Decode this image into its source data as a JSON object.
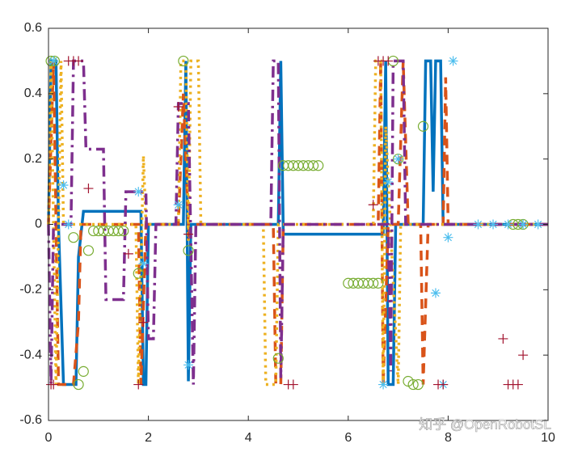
{
  "chart_data": {
    "type": "line",
    "xlim": [
      0,
      10
    ],
    "xticks": [
      0,
      2,
      4,
      6,
      8,
      10
    ],
    "ylim": [
      -0.6,
      0.6
    ],
    "yticks": [
      -0.6,
      -0.4,
      -0.2,
      0,
      0.2,
      0.4,
      0.6
    ],
    "watermark": "知乎 @OpenRobotSL",
    "series": [
      {
        "color": "#0072bd",
        "style": "solid",
        "x": [
          0,
          0.05,
          0.15,
          0.2,
          0.3,
          0.55,
          0.6,
          0.7,
          1.85,
          1.9,
          1.95,
          2.0,
          2.7,
          2.75,
          2.8,
          2.85,
          4.6,
          4.65,
          4.7,
          6.7,
          6.75,
          6.8,
          6.9,
          6.95,
          7.5,
          7.55,
          7.65,
          7.7,
          7.75,
          7.85,
          7.9,
          10
        ],
        "values": [
          0,
          0.5,
          0.5,
          0,
          -0.49,
          -0.49,
          -0.1,
          0.04,
          0.04,
          -0.49,
          -0.49,
          0,
          0,
          0.5,
          -0.48,
          0,
          0,
          0.5,
          -0.03,
          -0.03,
          0.5,
          -0.49,
          -0.49,
          0,
          0,
          0.5,
          0.5,
          0.1,
          0.5,
          0.5,
          0,
          0
        ]
      },
      {
        "color": "#d95319",
        "style": "dashed",
        "x": [
          0,
          0.1,
          0.2,
          0.5,
          0.6,
          0.65,
          1.8,
          1.85,
          1.95,
          2.6,
          2.7,
          2.8,
          4.5,
          4.55,
          4.65,
          4.7,
          6.6,
          6.65,
          6.7,
          6.8,
          7.0,
          7.1,
          7.2,
          7.45,
          7.5,
          7.6,
          7.9,
          7.95,
          8.0,
          10
        ],
        "values": [
          0,
          0.5,
          -0.49,
          -0.49,
          -0.3,
          0,
          0,
          -0.49,
          0,
          0,
          0.4,
          0,
          0,
          -0.49,
          -0.49,
          0,
          0,
          0.5,
          -0.49,
          0,
          0,
          0.5,
          0,
          0,
          -0.49,
          0,
          0,
          0.45,
          0,
          0
        ]
      },
      {
        "color": "#edb120",
        "style": "dotted",
        "x": [
          0,
          0.05,
          0.15,
          0.25,
          0.3,
          1.75,
          1.8,
          1.9,
          1.95,
          2.6,
          2.65,
          2.75,
          2.8,
          2.85,
          3.0,
          3.05,
          4.3,
          4.35,
          4.55,
          4.6,
          6.5,
          6.55,
          6.65,
          6.7,
          6.75,
          7.0,
          7.05,
          10
        ],
        "values": [
          0,
          0.5,
          -0.49,
          0.5,
          0,
          0,
          -0.49,
          0.21,
          0,
          0,
          0.5,
          0.5,
          -0.05,
          0.5,
          0.5,
          0,
          0,
          -0.49,
          -0.49,
          0,
          0,
          0.5,
          0.5,
          -0.49,
          0.3,
          -0.49,
          0,
          0
        ]
      },
      {
        "color": "#7e2f8e",
        "style": "dashdot",
        "x": [
          0,
          0.05,
          0.1,
          0.45,
          0.5,
          0.7,
          0.75,
          1.1,
          1.15,
          1.5,
          1.55,
          1.95,
          2.0,
          2.1,
          2.15,
          2.55,
          2.6,
          2.8,
          2.9,
          2.95,
          4.45,
          4.5,
          4.6,
          4.65,
          4.7,
          6.8,
          6.85,
          6.9,
          7.1,
          7.15,
          10
        ],
        "values": [
          0,
          -0.49,
          0,
          0,
          0.5,
          0.5,
          0.23,
          0.23,
          -0.23,
          -0.23,
          0.1,
          0.1,
          -0.35,
          -0.35,
          0,
          0,
          0.37,
          0.37,
          -0.49,
          0,
          0,
          0.5,
          0.5,
          -0.47,
          0,
          0,
          -0.45,
          0.5,
          0.5,
          0,
          0
        ]
      },
      {
        "color": "#77ac30",
        "marker": "o",
        "x": [
          0.05,
          0.12,
          0.5,
          0.6,
          0.7,
          0.8,
          0.9,
          1.0,
          1.1,
          1.2,
          1.3,
          1.4,
          1.5,
          1.8,
          2.7,
          2.8,
          4.6,
          4.7,
          4.8,
          4.9,
          5.0,
          5.1,
          5.2,
          5.3,
          5.4,
          6.0,
          6.1,
          6.2,
          6.3,
          6.4,
          6.5,
          6.6,
          6.9,
          7.0,
          7.2,
          7.3,
          7.4,
          7.5,
          9.3,
          9.4,
          9.5
        ],
        "values": [
          0.5,
          0.5,
          -0.04,
          -0.49,
          -0.45,
          -0.08,
          -0.02,
          -0.02,
          -0.02,
          -0.02,
          -0.02,
          -0.02,
          -0.02,
          -0.15,
          0.5,
          -0.08,
          -0.41,
          0.18,
          0.18,
          0.18,
          0.18,
          0.18,
          0.18,
          0.18,
          0.18,
          -0.18,
          -0.18,
          -0.18,
          -0.18,
          -0.18,
          -0.18,
          -0.18,
          0.5,
          0.2,
          -0.48,
          -0.49,
          -0.49,
          0.3,
          0,
          0,
          0
        ]
      },
      {
        "color": "#4dbeee",
        "marker": "*",
        "x": [
          0.1,
          0.3,
          0.4,
          1.8,
          1.9,
          2.6,
          2.8,
          6.7,
          6.8,
          7.0,
          7.75,
          7.9,
          8.0,
          8.1,
          8.6,
          8.9,
          9.2,
          9.5,
          9.8
        ],
        "values": [
          0.5,
          0.12,
          0,
          0.1,
          -0.12,
          0.06,
          -0.43,
          -0.49,
          0.13,
          0.2,
          -0.21,
          -0.49,
          -0.04,
          0.5,
          0,
          0,
          0,
          0,
          0
        ]
      },
      {
        "color": "#a2142f",
        "marker": "+",
        "x": [
          0.05,
          0.1,
          0.4,
          0.5,
          0.6,
          0.8,
          1.6,
          1.8,
          1.9,
          2.6,
          2.8,
          4.8,
          4.9,
          6.5,
          6.6,
          6.7,
          6.8,
          7.8,
          7.9,
          9.1,
          9.2,
          9.3,
          9.4,
          9.5
        ],
        "values": [
          -0.49,
          -0.49,
          0.5,
          0.5,
          0.5,
          0.11,
          -0.09,
          -0.49,
          -0.3,
          0.36,
          -0.03,
          -0.49,
          -0.49,
          0.06,
          0.5,
          0.5,
          0.5,
          -0.49,
          -0.49,
          -0.35,
          -0.49,
          -0.49,
          -0.49,
          -0.4
        ]
      }
    ]
  }
}
